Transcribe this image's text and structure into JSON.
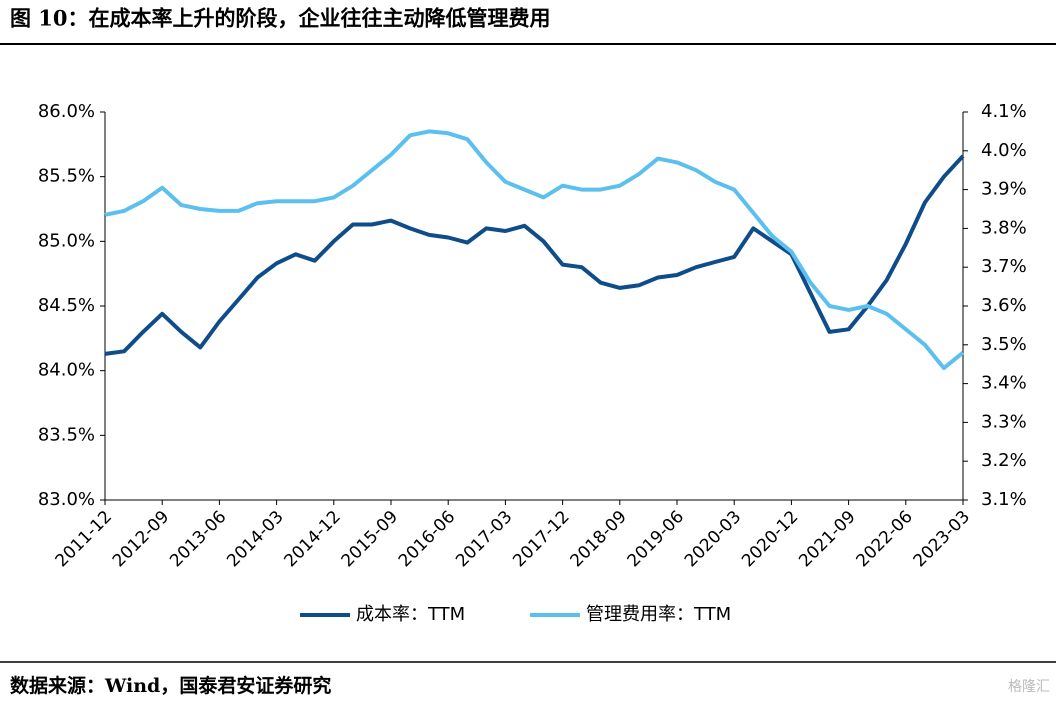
{
  "chart_data": {
    "type": "line",
    "title": "图 10：在成本率上升的阶段，企业往往主动降低管理费用",
    "source": "数据来源：Wind，国泰君安证券研究",
    "watermark": "格隆汇",
    "categories": [
      "2011-12",
      null,
      null,
      "2012-09",
      null,
      null,
      "2013-06",
      null,
      null,
      "2014-03",
      null,
      null,
      "2014-12",
      null,
      null,
      "2015-09",
      null,
      null,
      "2016-06",
      null,
      null,
      "2017-03",
      null,
      null,
      "2017-12",
      null,
      null,
      "2018-09",
      null,
      null,
      "2019-06",
      null,
      null,
      "2020-03",
      null,
      null,
      "2020-12",
      null,
      null,
      "2021-09",
      null,
      null,
      "2022-06",
      null,
      null,
      "2023-03"
    ],
    "series": [
      {
        "name": "成本率：TTM",
        "color": "#0f4c8a",
        "axis": "y",
        "values": [
          84.13,
          84.15,
          84.3,
          84.44,
          84.3,
          84.18,
          84.38,
          84.55,
          84.72,
          84.83,
          84.9,
          84.85,
          85.0,
          85.13,
          85.13,
          85.16,
          85.1,
          85.05,
          85.03,
          84.99,
          85.1,
          85.08,
          85.12,
          85.0,
          84.82,
          84.8,
          84.68,
          84.64,
          84.66,
          84.72,
          84.74,
          84.8,
          84.84,
          84.88,
          85.1,
          85.0,
          84.9,
          84.6,
          84.3,
          84.32,
          84.5,
          84.7,
          84.98,
          85.3,
          85.5,
          85.66
        ]
      },
      {
        "name": "管理费用率：TTM",
        "color": "#5bc0ee",
        "axis": "y2",
        "values": [
          3.835,
          3.845,
          3.87,
          3.905,
          3.86,
          3.85,
          3.845,
          3.845,
          3.865,
          3.87,
          3.87,
          3.87,
          3.88,
          3.91,
          3.95,
          3.99,
          4.04,
          4.05,
          4.045,
          4.03,
          3.97,
          3.92,
          3.9,
          3.88,
          3.91,
          3.9,
          3.9,
          3.91,
          3.94,
          3.98,
          3.97,
          3.95,
          3.92,
          3.9,
          3.84,
          3.78,
          3.74,
          3.66,
          3.6,
          3.59,
          3.6,
          3.58,
          3.54,
          3.5,
          3.44,
          3.48
        ]
      }
    ],
    "ylim": [
      83.0,
      86.0
    ],
    "yticks": [
      {
        "value": 83.0,
        "label": "83.0%"
      },
      {
        "value": 83.5,
        "label": "83.5%"
      },
      {
        "value": 84.0,
        "label": "84.0%"
      },
      {
        "value": 84.5,
        "label": "84.5%"
      },
      {
        "value": 85.0,
        "label": "85.0%"
      },
      {
        "value": 85.5,
        "label": "85.5%"
      },
      {
        "value": 86.0,
        "label": "86.0%"
      }
    ],
    "y2lim": [
      3.1,
      4.1
    ],
    "y2ticks": [
      {
        "value": 3.1,
        "label": "3.1%"
      },
      {
        "value": 3.2,
        "label": "3.2%"
      },
      {
        "value": 3.3,
        "label": "3.3%"
      },
      {
        "value": 3.4,
        "label": "3.4%"
      },
      {
        "value": 3.5,
        "label": "3.5%"
      },
      {
        "value": 3.6,
        "label": "3.6%"
      },
      {
        "value": 3.7,
        "label": "3.7%"
      },
      {
        "value": 3.8,
        "label": "3.8%"
      },
      {
        "value": 3.9,
        "label": "3.9%"
      },
      {
        "value": 4.0,
        "label": "4.0%"
      },
      {
        "value": 4.1,
        "label": "4.1%"
      }
    ],
    "legend": "bottom",
    "grid": false
  }
}
